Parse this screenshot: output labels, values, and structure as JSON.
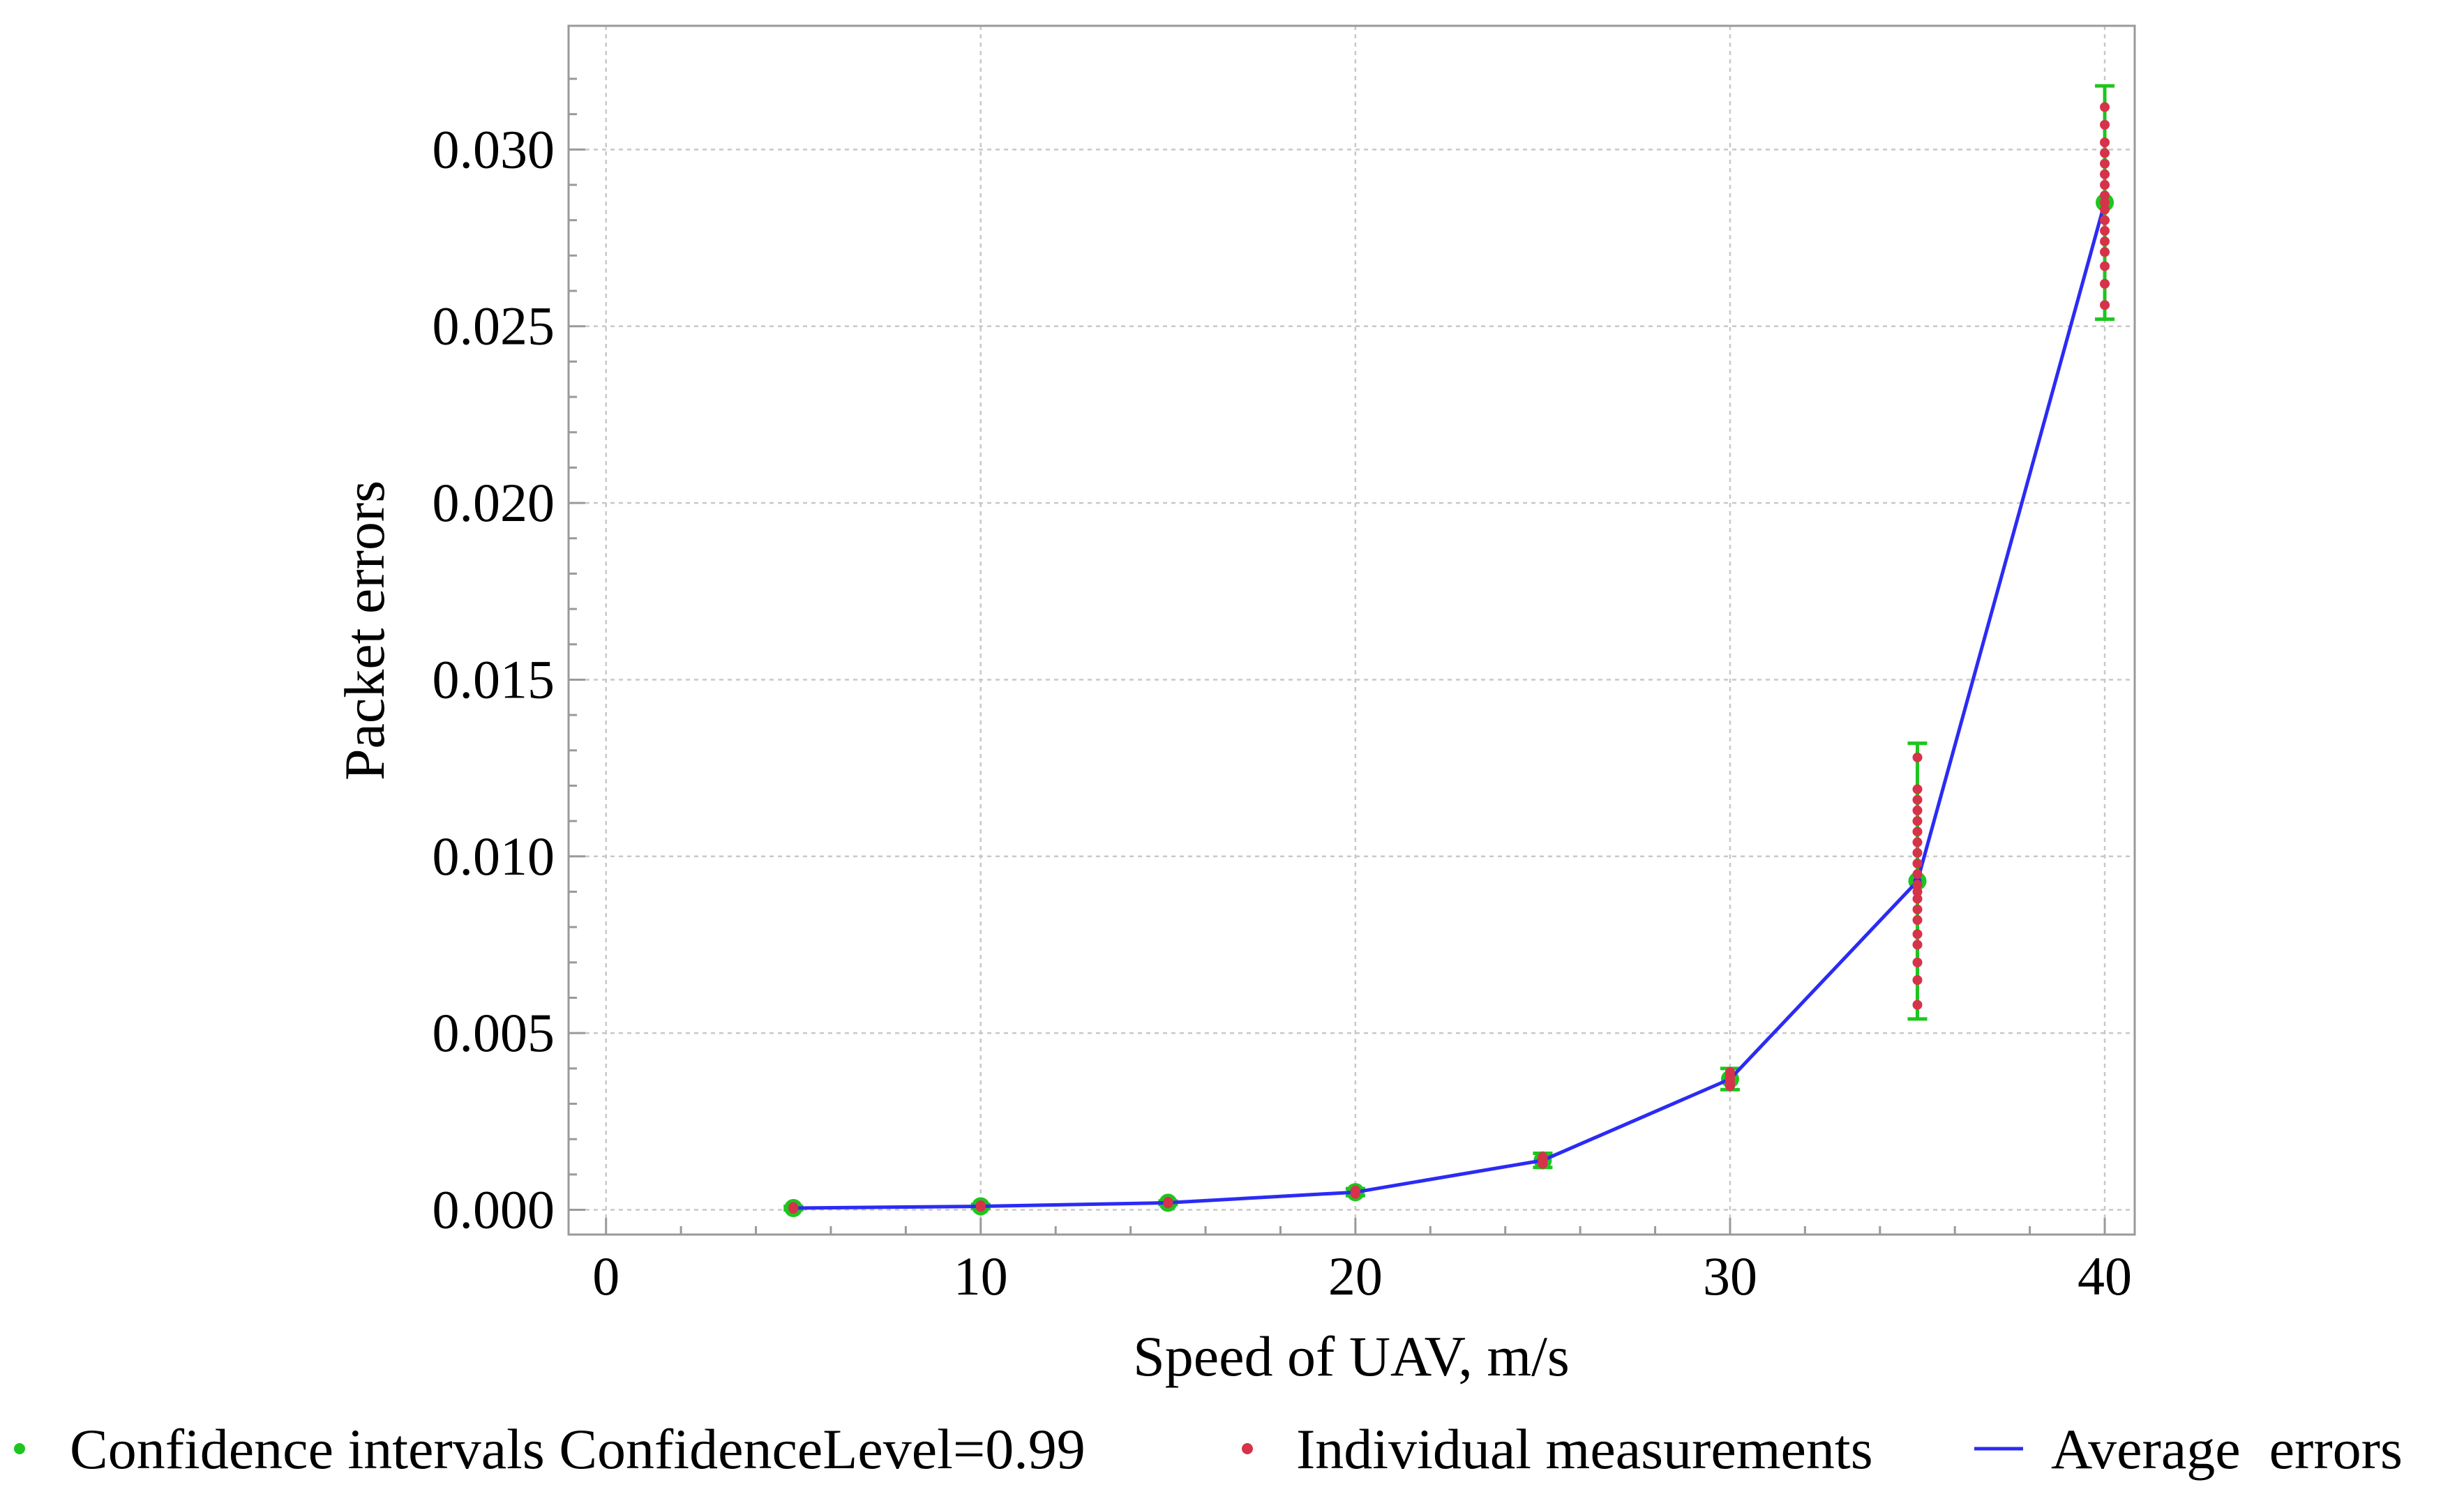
{
  "chart_data": {
    "type": "line",
    "title": "",
    "xlabel": "Speed of UAV, m/s",
    "ylabel": "Packet errors",
    "xlim": [
      -1,
      40.8
    ],
    "ylim": [
      -0.0007,
      0.0335
    ],
    "x_ticks": [
      0,
      10,
      20,
      30,
      40
    ],
    "x_tick_labels": [
      "0",
      "10",
      "20",
      "30",
      "40"
    ],
    "y_ticks": [
      0.0,
      0.005,
      0.01,
      0.015,
      0.02,
      0.025,
      0.03
    ],
    "y_tick_labels": [
      "0.000",
      "0.005",
      "0.010",
      "0.015",
      "0.020",
      "0.025",
      "0.030"
    ],
    "grid": true,
    "legend_position": "bottom",
    "series": [
      {
        "name": "Average  errors",
        "kind": "line",
        "color": "#2b2bf5",
        "x": [
          5,
          10,
          15,
          20,
          25,
          30,
          35,
          40
        ],
        "values": [
          5e-05,
          0.0001,
          0.0002,
          0.0005,
          0.0014,
          0.0037,
          0.0093,
          0.0285
        ]
      },
      {
        "name": "Confidence intervals ConfidenceLevel=0.99",
        "kind": "errorbar",
        "color": "#1ec51e",
        "x": [
          5,
          10,
          15,
          20,
          25,
          30,
          35,
          40
        ],
        "mean": [
          5e-05,
          0.0001,
          0.0002,
          0.0005,
          0.0014,
          0.0037,
          0.0093,
          0.0285
        ],
        "lower": [
          0.0,
          5e-05,
          0.00015,
          0.0004,
          0.0012,
          0.0034,
          0.0054,
          0.0252
        ],
        "upper": [
          0.0001,
          0.00015,
          0.00025,
          0.0006,
          0.0016,
          0.004,
          0.0132,
          0.0318
        ]
      },
      {
        "name": "Individual measurements",
        "kind": "scatter",
        "color": "#d6334a",
        "points": [
          [
            5,
            3e-05
          ],
          [
            5,
            5e-05
          ],
          [
            5,
            8e-05
          ],
          [
            10,
            8e-05
          ],
          [
            10,
            0.0001
          ],
          [
            10,
            0.00013
          ],
          [
            15,
            0.00018
          ],
          [
            15,
            0.0002
          ],
          [
            15,
            0.00023
          ],
          [
            20,
            0.00045
          ],
          [
            20,
            0.0005
          ],
          [
            20,
            0.00055
          ],
          [
            25,
            0.0013
          ],
          [
            25,
            0.00138
          ],
          [
            25,
            0.00145
          ],
          [
            25,
            0.0015
          ],
          [
            30,
            0.0035
          ],
          [
            30,
            0.0036
          ],
          [
            30,
            0.0037
          ],
          [
            30,
            0.0038
          ],
          [
            30,
            0.0039
          ],
          [
            35,
            0.0058
          ],
          [
            35,
            0.0065
          ],
          [
            35,
            0.007
          ],
          [
            35,
            0.0075
          ],
          [
            35,
            0.0078
          ],
          [
            35,
            0.0082
          ],
          [
            35,
            0.0085
          ],
          [
            35,
            0.0088
          ],
          [
            35,
            0.009
          ],
          [
            35,
            0.0092
          ],
          [
            35,
            0.0095
          ],
          [
            35,
            0.0098
          ],
          [
            35,
            0.0101
          ],
          [
            35,
            0.0104
          ],
          [
            35,
            0.0107
          ],
          [
            35,
            0.011
          ],
          [
            35,
            0.0113
          ],
          [
            35,
            0.0116
          ],
          [
            35,
            0.0119
          ],
          [
            35,
            0.0128
          ],
          [
            40,
            0.0256
          ],
          [
            40,
            0.0262
          ],
          [
            40,
            0.0267
          ],
          [
            40,
            0.0271
          ],
          [
            40,
            0.0274
          ],
          [
            40,
            0.0277
          ],
          [
            40,
            0.028
          ],
          [
            40,
            0.0283
          ],
          [
            40,
            0.0285
          ],
          [
            40,
            0.0287
          ],
          [
            40,
            0.029
          ],
          [
            40,
            0.0293
          ],
          [
            40,
            0.0296
          ],
          [
            40,
            0.0299
          ],
          [
            40,
            0.0302
          ],
          [
            40,
            0.0307
          ],
          [
            40,
            0.0312
          ]
        ]
      }
    ],
    "legend": [
      {
        "label": "Confidence intervals ConfidenceLevel=0.99",
        "marker": "dot",
        "color": "#1ec51e"
      },
      {
        "label": "Individual measurements",
        "marker": "dot",
        "color": "#d6334a"
      },
      {
        "label": "Average  errors",
        "marker": "line",
        "color": "#2b2bf5"
      }
    ]
  }
}
